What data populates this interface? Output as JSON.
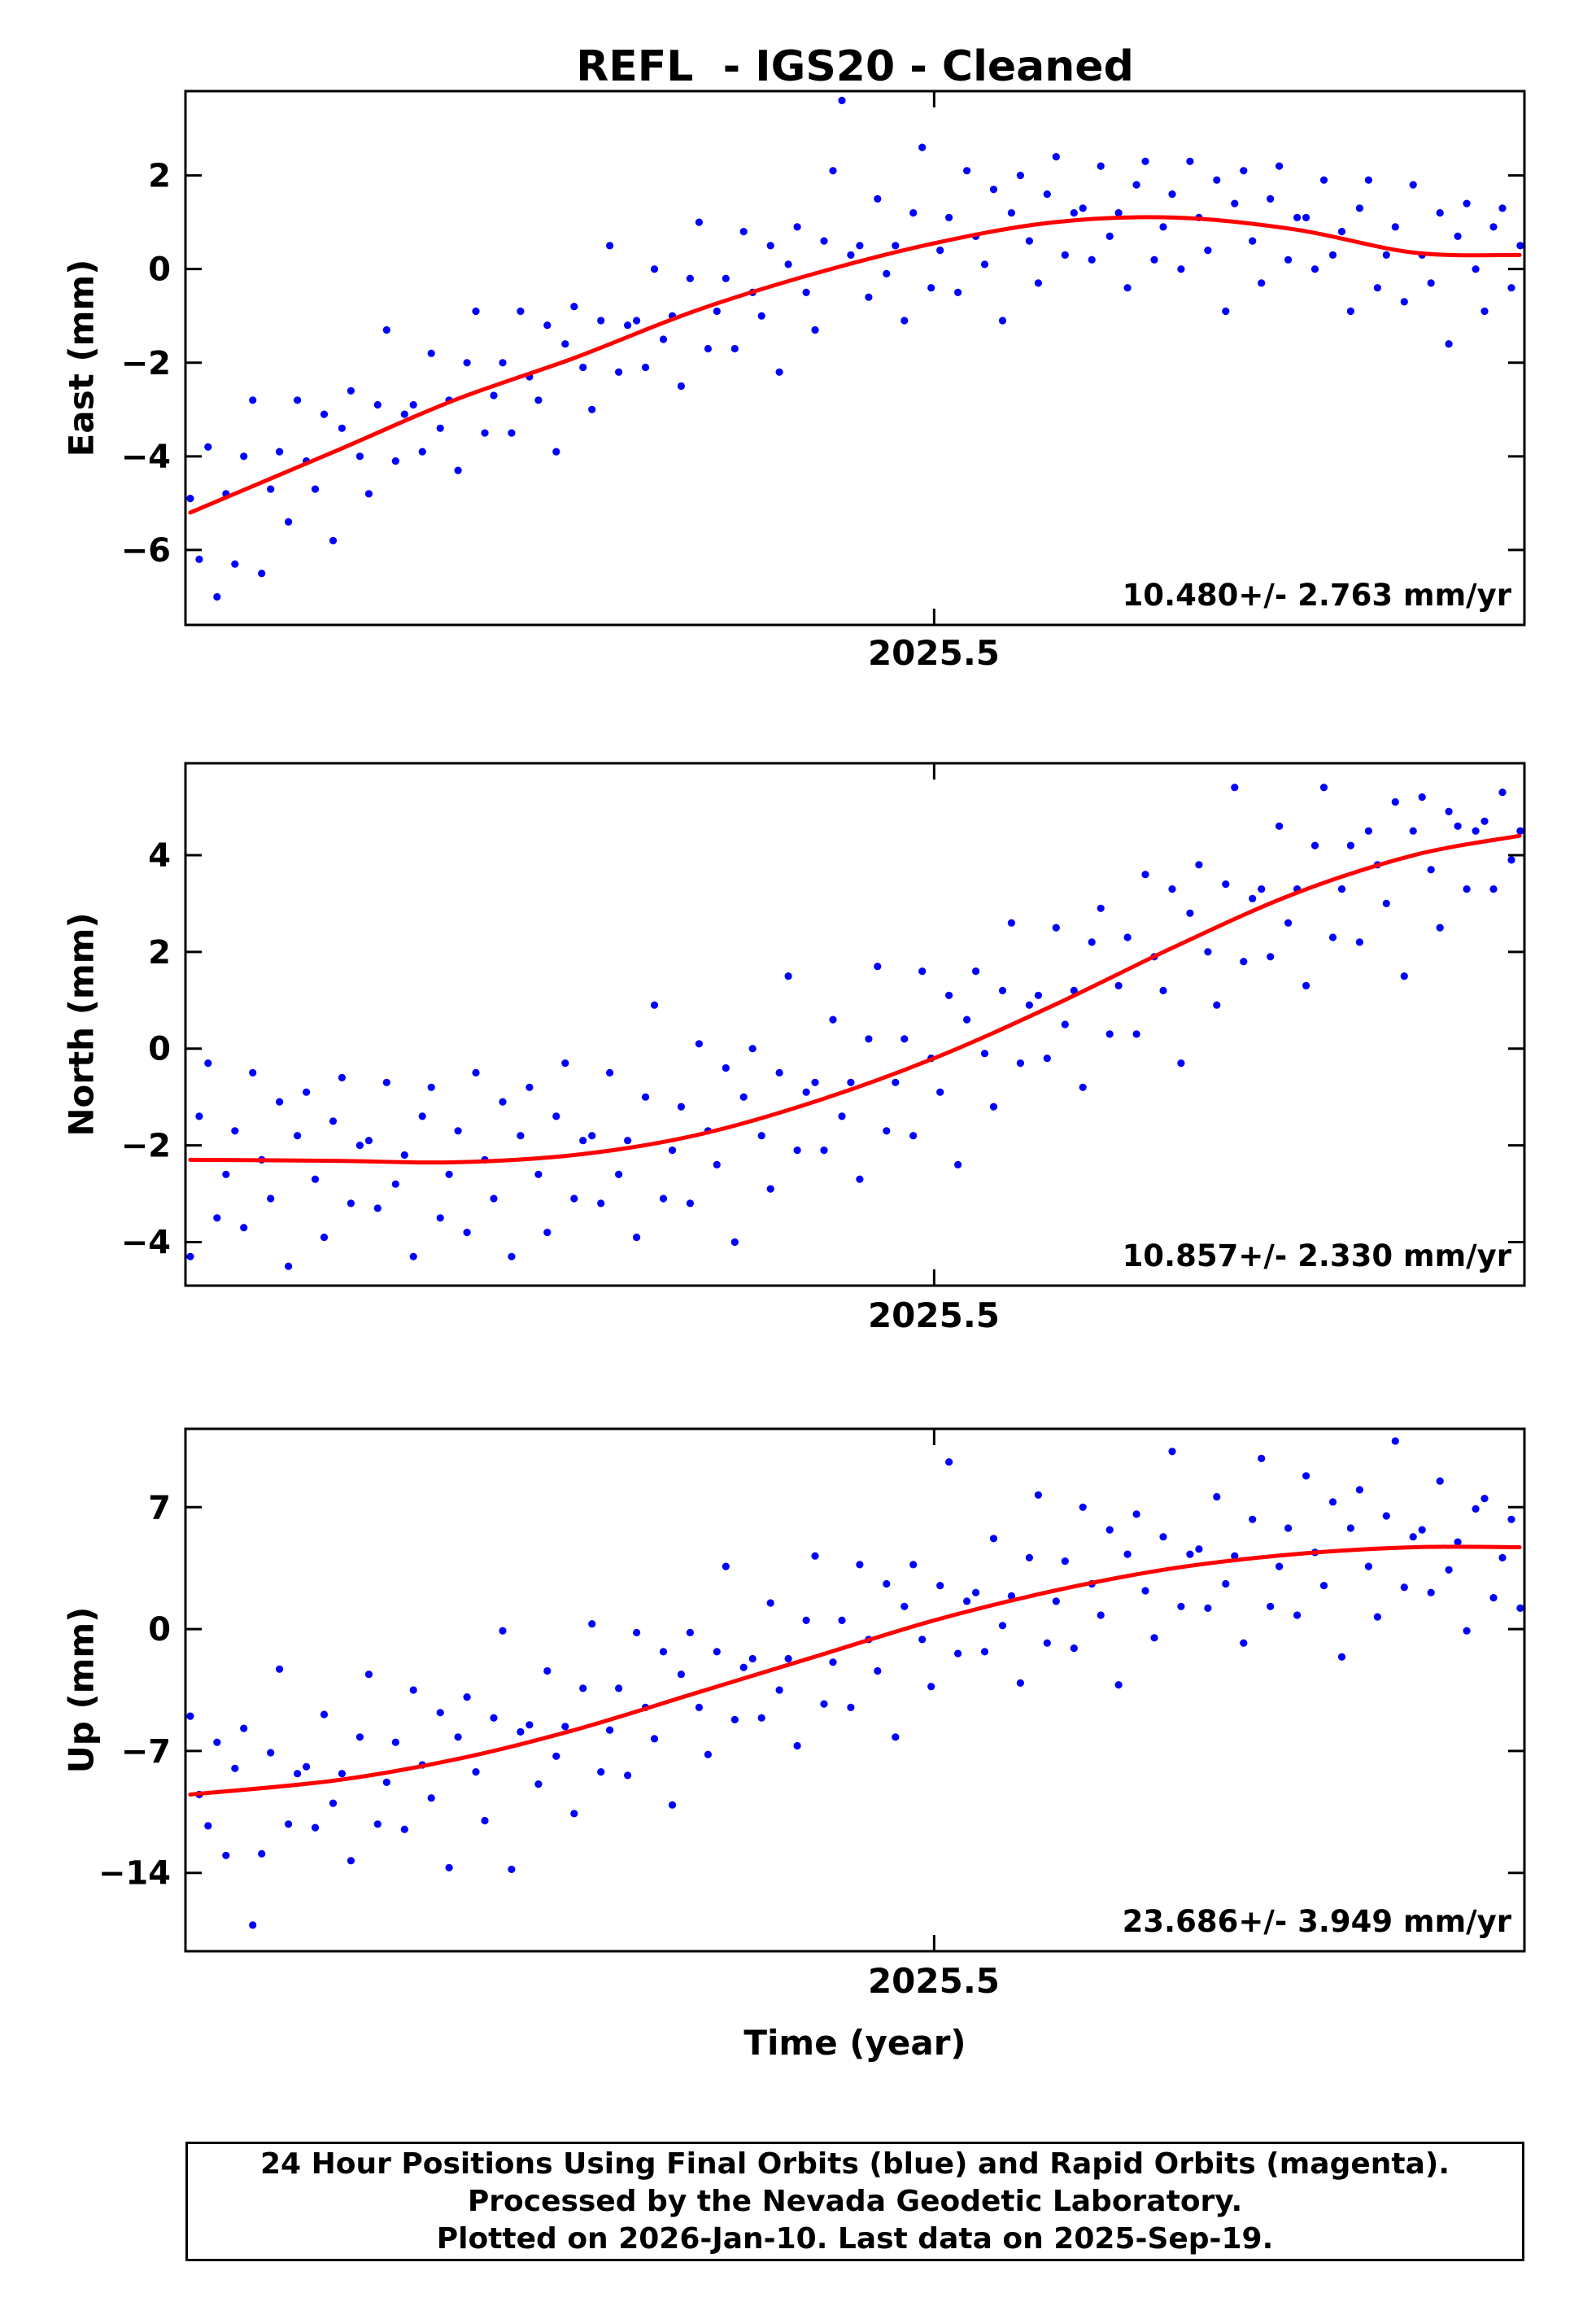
{
  "title": "REFL  - IGS20 - Cleaned",
  "xlabel": "Time (year)",
  "colors": {
    "point": "#0000ff",
    "trend": "#ff0000",
    "axis": "#000000"
  },
  "footer": {
    "line1": "24 Hour Positions Using Final Orbits (blue) and Rapid Orbits (magenta).",
    "line2": "Processed by the Nevada Geodetic Laboratory.",
    "line3": "Plotted on 2026-Jan-10. Last data on 2025-Sep-19."
  },
  "chart_data": [
    {
      "type": "scatter",
      "name": "east",
      "ylabel": "East (mm)",
      "rate_label": "10.480+/- 2.763 mm/yr",
      "xlim": [
        2025.188,
        2025.746
      ],
      "ylim": [
        -7.6,
        3.8
      ],
      "grid": false,
      "xticks": [
        {
          "v": 2025.5,
          "label": "2025.5"
        }
      ],
      "yticks": [
        {
          "v": 2,
          "label": "2"
        },
        {
          "v": 0,
          "label": "0"
        },
        {
          "v": -2,
          "label": "−2"
        },
        {
          "v": -4,
          "label": "−4"
        },
        {
          "v": -6,
          "label": "−6"
        }
      ],
      "x0": 2025.19,
      "dx": 0.00372,
      "scatter_y": [
        -4.9,
        -6.2,
        -3.8,
        -7.0,
        -4.8,
        -6.3,
        -4.0,
        -2.8,
        -6.5,
        -4.7,
        -3.9,
        -5.4,
        -2.8,
        -4.1,
        -4.7,
        -3.1,
        -5.8,
        -3.4,
        -2.6,
        -4.0,
        -4.8,
        -2.9,
        -1.3,
        -4.1,
        -3.1,
        -2.9,
        -3.9,
        -1.8,
        -3.4,
        -2.8,
        -4.3,
        -2.0,
        -0.9,
        -3.5,
        -2.7,
        -2.0,
        -3.5,
        -0.9,
        -2.3,
        -2.8,
        -1.2,
        -3.9,
        -1.6,
        -0.8,
        -2.1,
        -3.0,
        -1.1,
        0.5,
        -2.2,
        -1.2,
        -1.1,
        -2.1,
        0.0,
        -1.5,
        -1.0,
        -2.5,
        -0.2,
        1.0,
        -1.7,
        -0.9,
        -0.2,
        -1.7,
        0.8,
        -0.5,
        -1.0,
        0.5,
        -2.2,
        0.1,
        0.9,
        -0.5,
        -1.3,
        0.6,
        2.1,
        3.6,
        0.3,
        0.5,
        -0.6,
        1.5,
        -0.1,
        0.5,
        -1.1,
        1.2,
        2.6,
        -0.4,
        0.4,
        1.1,
        -0.5,
        2.1,
        0.7,
        0.1,
        1.7,
        -1.1,
        1.2,
        2.0,
        0.6,
        -0.3,
        1.6,
        2.4,
        0.3,
        1.2,
        1.3,
        0.2,
        2.2,
        0.7,
        1.2,
        -0.4,
        1.8,
        2.3,
        0.2,
        0.9,
        1.6,
        0.0,
        2.3,
        1.1,
        0.4,
        1.9,
        -0.9,
        1.4,
        2.1,
        0.6,
        -0.3,
        1.5,
        2.2,
        0.2,
        1.1,
        1.1,
        0.0,
        1.9,
        0.3,
        0.8,
        -0.9,
        1.3,
        1.9,
        -0.4,
        0.3,
        0.9,
        -0.7,
        1.8,
        0.3,
        -0.3,
        1.2,
        -1.6,
        0.7,
        1.4,
        0.0,
        -0.9,
        0.9,
        1.3,
        -0.4,
        0.5
      ],
      "trend": [
        [
          2025.19,
          -5.2
        ],
        [
          2025.25,
          -3.9
        ],
        [
          2025.3,
          -2.8
        ],
        [
          2025.35,
          -1.9
        ],
        [
          2025.4,
          -0.9
        ],
        [
          2025.45,
          -0.1
        ],
        [
          2025.5,
          0.55
        ],
        [
          2025.55,
          1.0
        ],
        [
          2025.6,
          1.1
        ],
        [
          2025.65,
          0.85
        ],
        [
          2025.7,
          0.35
        ],
        [
          2025.744,
          0.3
        ]
      ]
    },
    {
      "type": "scatter",
      "name": "north",
      "ylabel": "North (mm)",
      "rate_label": "10.857+/- 2.330 mm/yr",
      "xlim": [
        2025.188,
        2025.746
      ],
      "ylim": [
        -4.9,
        5.9
      ],
      "grid": false,
      "xticks": [
        {
          "v": 2025.5,
          "label": "2025.5"
        }
      ],
      "yticks": [
        {
          "v": 4,
          "label": "4"
        },
        {
          "v": 2,
          "label": "2"
        },
        {
          "v": 0,
          "label": "0"
        },
        {
          "v": -2,
          "label": "−2"
        },
        {
          "v": -4,
          "label": "−4"
        }
      ],
      "x0": 2025.19,
      "dx": 0.00372,
      "scatter_y": [
        -4.3,
        -1.4,
        -0.3,
        -3.5,
        -2.6,
        -1.7,
        -3.7,
        -0.5,
        -2.3,
        -3.1,
        -1.1,
        -4.5,
        -1.8,
        -0.9,
        -2.7,
        -3.9,
        -1.5,
        -0.6,
        -3.2,
        -2.0,
        -1.9,
        -3.3,
        -0.7,
        -2.8,
        -2.2,
        -4.3,
        -1.4,
        -0.8,
        -3.5,
        -2.6,
        -1.7,
        -3.8,
        -0.5,
        -2.3,
        -3.1,
        -1.1,
        -4.3,
        -1.8,
        -0.8,
        -2.6,
        -3.8,
        -1.4,
        -0.3,
        -3.1,
        -1.9,
        -1.8,
        -3.2,
        -0.5,
        -2.6,
        -1.9,
        -3.9,
        -1.0,
        0.9,
        -3.1,
        -2.1,
        -1.2,
        -3.2,
        0.1,
        -1.7,
        -2.4,
        -0.4,
        -4.0,
        -1.0,
        0.0,
        -1.8,
        -2.9,
        -0.5,
        1.5,
        -2.1,
        -0.9,
        -0.7,
        -2.1,
        0.6,
        -1.4,
        -0.7,
        -2.7,
        0.2,
        1.7,
        -1.7,
        -0.7,
        0.2,
        -1.8,
        1.6,
        -0.2,
        -0.9,
        1.1,
        -2.4,
        0.6,
        1.6,
        -0.1,
        -1.2,
        1.2,
        2.6,
        -0.3,
        0.9,
        1.1,
        -0.2,
        2.5,
        0.5,
        1.2,
        -0.8,
        2.2,
        2.9,
        0.3,
        1.3,
        2.3,
        0.3,
        3.6,
        1.9,
        1.2,
        3.3,
        -0.3,
        2.8,
        3.8,
        2.0,
        0.9,
        3.4,
        5.4,
        1.8,
        3.1,
        3.3,
        1.9,
        4.6,
        2.6,
        3.3,
        1.3,
        4.2,
        5.4,
        2.3,
        3.3,
        4.2,
        2.2,
        4.5,
        3.8,
        3.0,
        5.1,
        1.5,
        4.5,
        5.2,
        3.7,
        2.5,
        4.9,
        4.6,
        3.3,
        4.5,
        4.7,
        3.3,
        5.3,
        3.9,
        4.5
      ],
      "trend": [
        [
          2025.19,
          -2.3
        ],
        [
          2025.25,
          -2.32
        ],
        [
          2025.3,
          -2.35
        ],
        [
          2025.35,
          -2.2
        ],
        [
          2025.4,
          -1.8
        ],
        [
          2025.45,
          -1.1
        ],
        [
          2025.5,
          -0.2
        ],
        [
          2025.55,
          0.9
        ],
        [
          2025.6,
          2.1
        ],
        [
          2025.65,
          3.2
        ],
        [
          2025.7,
          4.0
        ],
        [
          2025.744,
          4.4
        ]
      ]
    },
    {
      "type": "scatter",
      "name": "up",
      "ylabel": "Up (mm)",
      "rate_label": "23.686+/- 3.949 mm/yr",
      "xlim": [
        2025.188,
        2025.746
      ],
      "ylim": [
        -18.5,
        11.5
      ],
      "grid": false,
      "xticks": [
        {
          "v": 2025.5,
          "label": "2025.5"
        }
      ],
      "yticks": [
        {
          "v": 7,
          "label": "7"
        },
        {
          "v": 0,
          "label": "0"
        },
        {
          "v": -7,
          "label": "−7"
        },
        {
          "v": -14,
          "label": "−14"
        }
      ],
      "x0": 2025.19,
      "dx": 0.00372,
      "scatter_y": [
        -5.0,
        -9.5,
        -11.3,
        -6.5,
        -13.0,
        -8.0,
        -5.7,
        -17.0,
        -12.9,
        -7.1,
        -2.3,
        -11.2,
        -8.3,
        -7.9,
        -11.4,
        -4.9,
        -10.0,
        -8.3,
        -13.3,
        -6.2,
        -2.6,
        -11.2,
        -8.8,
        -6.5,
        -11.5,
        -3.5,
        -7.8,
        -9.7,
        -4.8,
        -13.7,
        -6.2,
        -3.9,
        -8.2,
        -11.0,
        -5.1,
        -0.1,
        -13.8,
        -5.9,
        -5.5,
        -8.9,
        -2.4,
        -7.3,
        -5.6,
        -10.6,
        -3.4,
        0.3,
        -8.2,
        -5.8,
        -3.4,
        -8.4,
        -0.2,
        -4.5,
        -6.3,
        -1.3,
        -10.1,
        -2.6,
        -0.2,
        -4.5,
        -7.2,
        -1.3,
        3.6,
        -5.2,
        -2.2,
        -1.7,
        -5.1,
        1.5,
        -3.5,
        -1.7,
        -6.7,
        0.5,
        4.2,
        -4.3,
        -1.9,
        0.5,
        -4.5,
        3.7,
        -0.6,
        -2.4,
        2.6,
        -6.2,
        1.3,
        3.7,
        -0.6,
        -3.3,
        2.5,
        9.6,
        -1.4,
        1.6,
        2.1,
        -1.3,
        5.2,
        0.2,
        1.9,
        -3.1,
        4.1,
        7.7,
        -0.8,
        1.6,
        3.9,
        -1.1,
        7.0,
        2.6,
        0.8,
        5.7,
        -3.2,
        4.3,
        6.6,
        2.2,
        -0.5,
        5.3,
        10.2,
        1.3,
        4.3,
        4.6,
        1.2,
        7.6,
        2.6,
        4.2,
        -0.8,
        6.3,
        9.8,
        1.3,
        3.6,
        5.8,
        0.8,
        8.8,
        4.4,
        2.5,
        7.3,
        -1.6,
        5.8,
        8.0,
        3.6,
        0.7,
        6.5,
        10.8,
        2.4,
        5.3,
        5.7,
        2.1,
        8.5,
        3.4,
        5.0,
        -0.1,
        6.9,
        7.5,
        1.8,
        4.1,
        6.3,
        1.2
      ],
      "trend": [
        [
          2025.19,
          -9.5
        ],
        [
          2025.25,
          -8.7
        ],
        [
          2025.3,
          -7.5
        ],
        [
          2025.35,
          -5.8
        ],
        [
          2025.4,
          -3.7
        ],
        [
          2025.45,
          -1.6
        ],
        [
          2025.5,
          0.5
        ],
        [
          2025.55,
          2.2
        ],
        [
          2025.6,
          3.5
        ],
        [
          2025.65,
          4.3
        ],
        [
          2025.7,
          4.7
        ],
        [
          2025.744,
          4.7
        ]
      ]
    }
  ]
}
